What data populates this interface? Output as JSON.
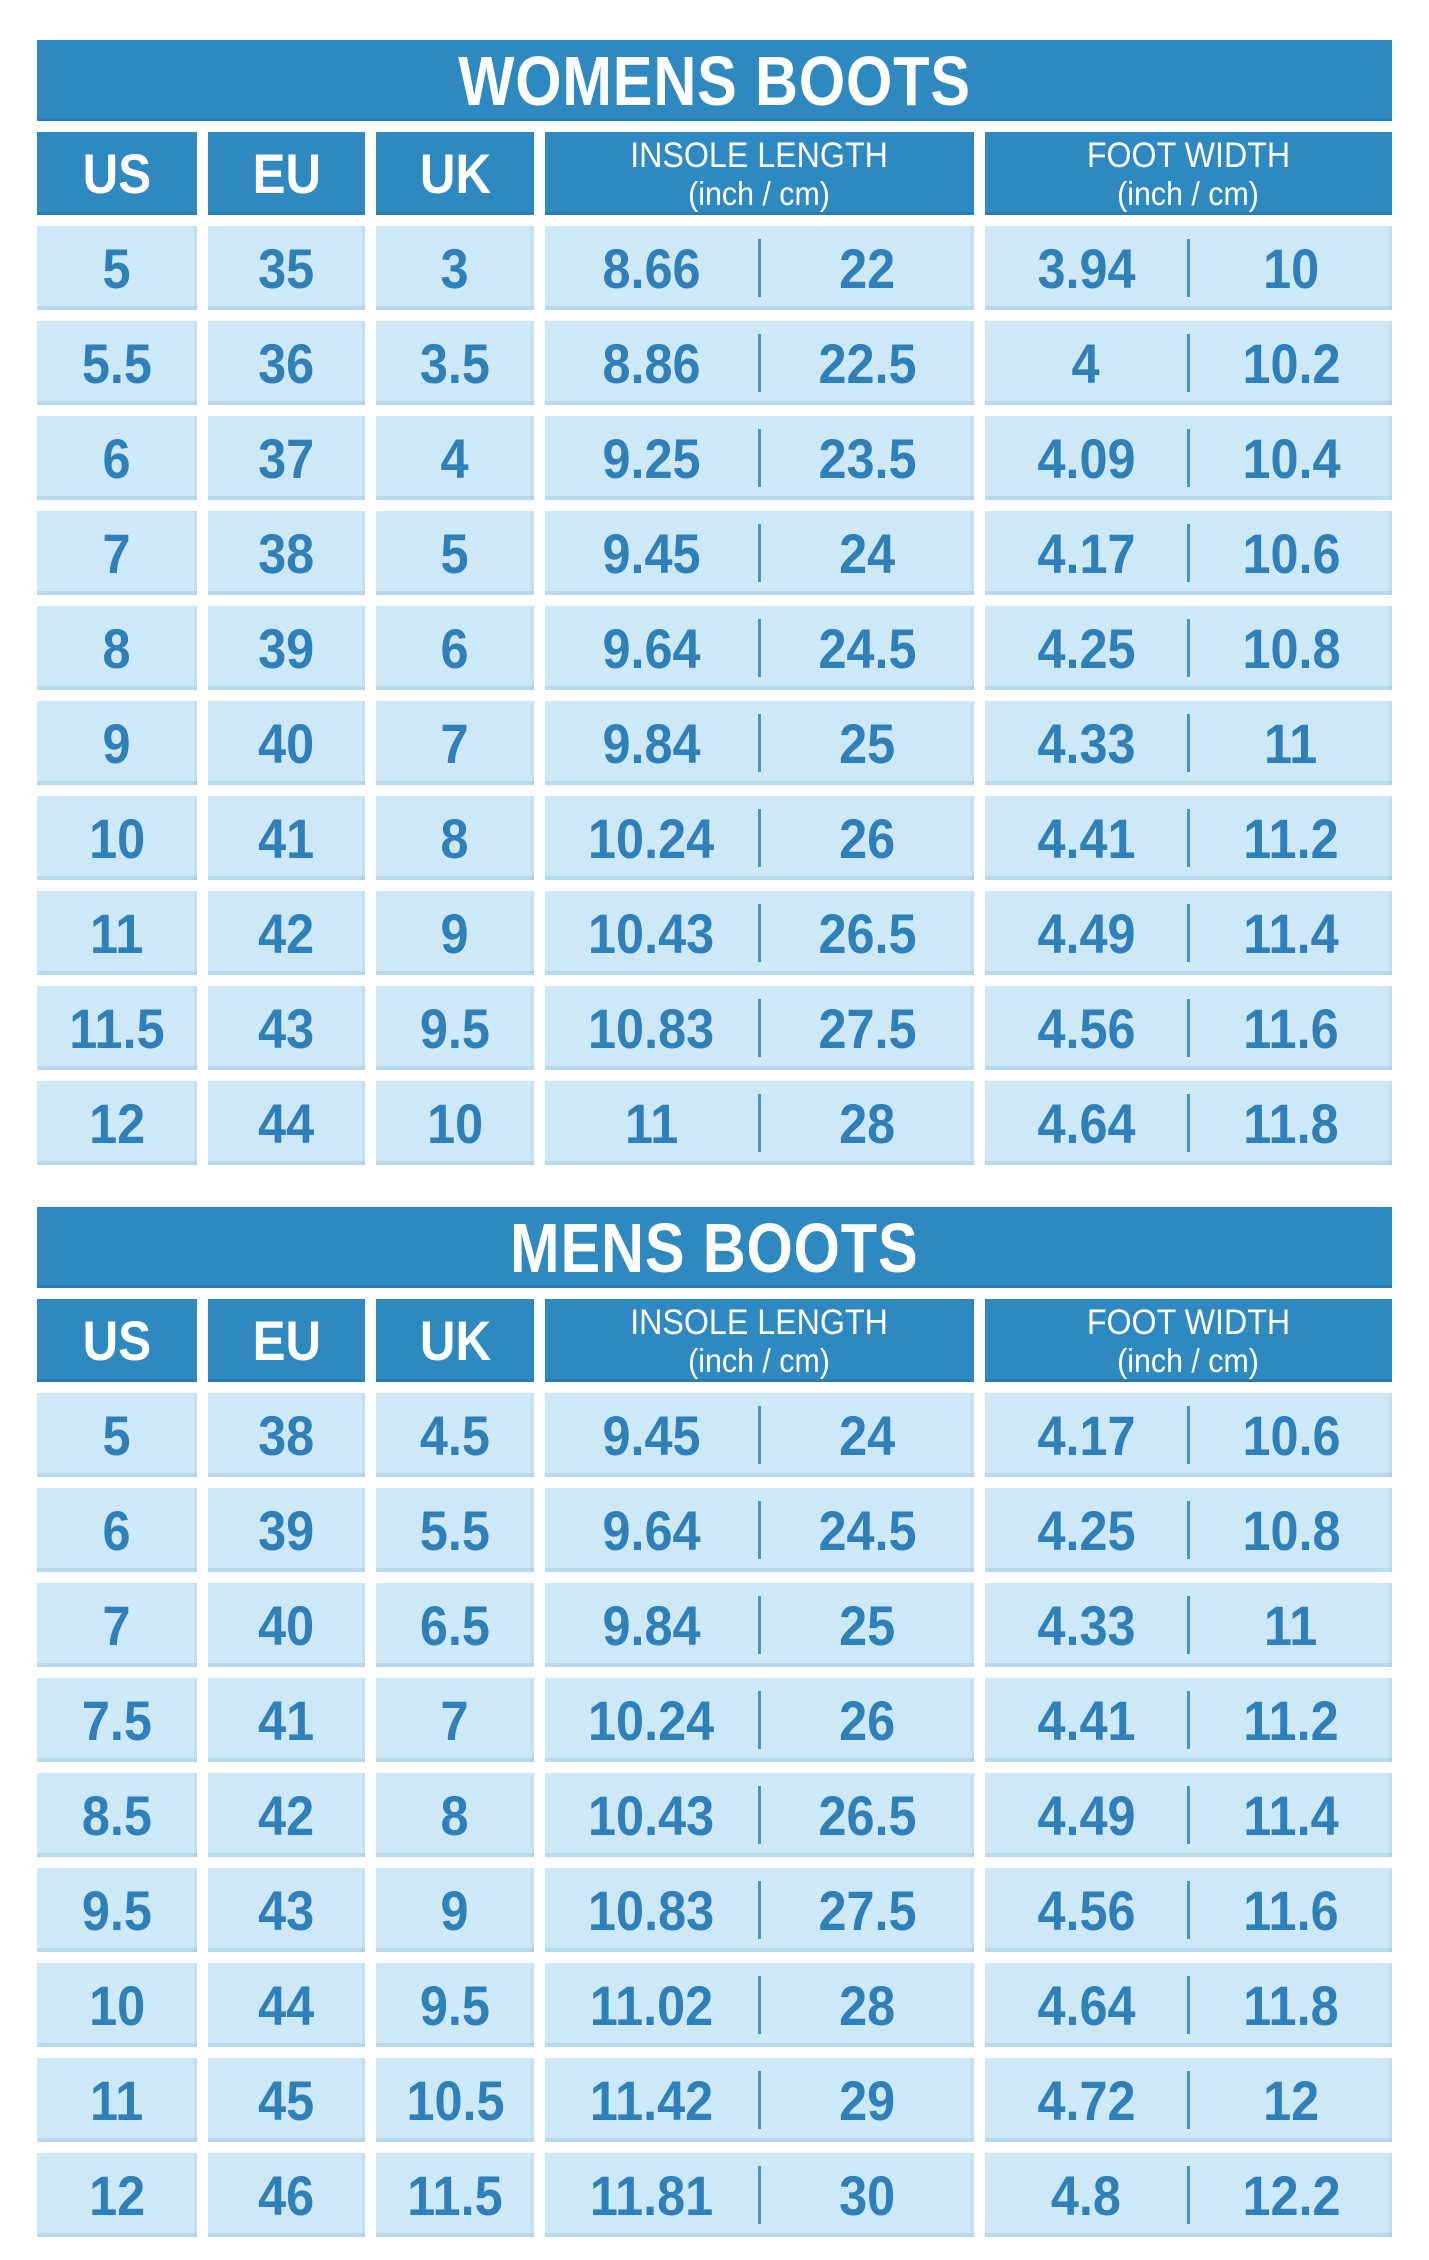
{
  "colors": {
    "header_blue": "#2e89c0",
    "row_blue": "#cde9f8",
    "number_blue": "#2f7fb8",
    "divider_blue": "#4a94c4",
    "header_text": "#ffffff",
    "page_background": "#ffffff"
  },
  "chart_data": [
    {
      "type": "table",
      "title": "WOMENS BOOTS",
      "header": {
        "us": "US",
        "eu": "EU",
        "uk": "UK",
        "insole_line1": "INSOLE LENGTH",
        "insole_line2": "(inch / cm)",
        "foot_line1": "FOOT WIDTH",
        "foot_line2": "(inch / cm)"
      },
      "rows": [
        {
          "us": "5",
          "eu": "35",
          "uk": "3",
          "insole_inch": "8.66",
          "insole_cm": "22",
          "foot_inch": "3.94",
          "foot_cm": "10"
        },
        {
          "us": "5.5",
          "eu": "36",
          "uk": "3.5",
          "insole_inch": "8.86",
          "insole_cm": "22.5",
          "foot_inch": "4",
          "foot_cm": "10.2"
        },
        {
          "us": "6",
          "eu": "37",
          "uk": "4",
          "insole_inch": "9.25",
          "insole_cm": "23.5",
          "foot_inch": "4.09",
          "foot_cm": "10.4"
        },
        {
          "us": "7",
          "eu": "38",
          "uk": "5",
          "insole_inch": "9.45",
          "insole_cm": "24",
          "foot_inch": "4.17",
          "foot_cm": "10.6"
        },
        {
          "us": "8",
          "eu": "39",
          "uk": "6",
          "insole_inch": "9.64",
          "insole_cm": "24.5",
          "foot_inch": "4.25",
          "foot_cm": "10.8"
        },
        {
          "us": "9",
          "eu": "40",
          "uk": "7",
          "insole_inch": "9.84",
          "insole_cm": "25",
          "foot_inch": "4.33",
          "foot_cm": "11"
        },
        {
          "us": "10",
          "eu": "41",
          "uk": "8",
          "insole_inch": "10.24",
          "insole_cm": "26",
          "foot_inch": "4.41",
          "foot_cm": "11.2"
        },
        {
          "us": "11",
          "eu": "42",
          "uk": "9",
          "insole_inch": "10.43",
          "insole_cm": "26.5",
          "foot_inch": "4.49",
          "foot_cm": "11.4"
        },
        {
          "us": "11.5",
          "eu": "43",
          "uk": "9.5",
          "insole_inch": "10.83",
          "insole_cm": "27.5",
          "foot_inch": "4.56",
          "foot_cm": "11.6"
        },
        {
          "us": "12",
          "eu": "44",
          "uk": "10",
          "insole_inch": "11",
          "insole_cm": "28",
          "foot_inch": "4.64",
          "foot_cm": "11.8"
        }
      ]
    },
    {
      "type": "table",
      "title": "MENS BOOTS",
      "header": {
        "us": "US",
        "eu": "EU",
        "uk": "UK",
        "insole_line1": "INSOLE LENGTH",
        "insole_line2": "(inch / cm)",
        "foot_line1": "FOOT WIDTH",
        "foot_line2": "(inch / cm)"
      },
      "rows": [
        {
          "us": "5",
          "eu": "38",
          "uk": "4.5",
          "insole_inch": "9.45",
          "insole_cm": "24",
          "foot_inch": "4.17",
          "foot_cm": "10.6"
        },
        {
          "us": "6",
          "eu": "39",
          "uk": "5.5",
          "insole_inch": "9.64",
          "insole_cm": "24.5",
          "foot_inch": "4.25",
          "foot_cm": "10.8"
        },
        {
          "us": "7",
          "eu": "40",
          "uk": "6.5",
          "insole_inch": "9.84",
          "insole_cm": "25",
          "foot_inch": "4.33",
          "foot_cm": "11"
        },
        {
          "us": "7.5",
          "eu": "41",
          "uk": "7",
          "insole_inch": "10.24",
          "insole_cm": "26",
          "foot_inch": "4.41",
          "foot_cm": "11.2"
        },
        {
          "us": "8.5",
          "eu": "42",
          "uk": "8",
          "insole_inch": "10.43",
          "insole_cm": "26.5",
          "foot_inch": "4.49",
          "foot_cm": "11.4"
        },
        {
          "us": "9.5",
          "eu": "43",
          "uk": "9",
          "insole_inch": "10.83",
          "insole_cm": "27.5",
          "foot_inch": "4.56",
          "foot_cm": "11.6"
        },
        {
          "us": "10",
          "eu": "44",
          "uk": "9.5",
          "insole_inch": "11.02",
          "insole_cm": "28",
          "foot_inch": "4.64",
          "foot_cm": "11.8"
        },
        {
          "us": "11",
          "eu": "45",
          "uk": "10.5",
          "insole_inch": "11.42",
          "insole_cm": "29",
          "foot_inch": "4.72",
          "foot_cm": "12"
        },
        {
          "us": "12",
          "eu": "46",
          "uk": "11.5",
          "insole_inch": "11.81",
          "insole_cm": "30",
          "foot_inch": "4.8",
          "foot_cm": "12.2"
        }
      ]
    }
  ]
}
